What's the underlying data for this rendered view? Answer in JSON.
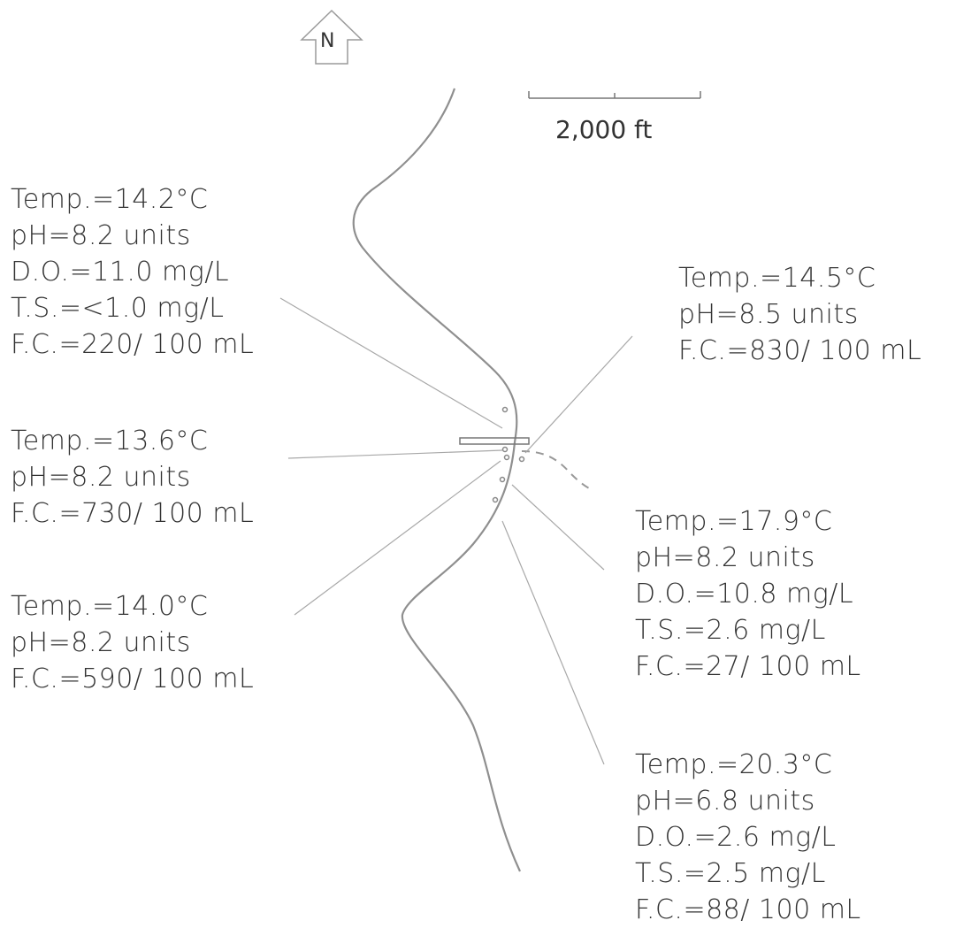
{
  "north_arrow": {
    "label": "N",
    "icon": "north-arrow-icon"
  },
  "scale_bar": {
    "label": "2,000 ft"
  },
  "colors": {
    "stroke": "#9a9a9a",
    "text": "#333333"
  },
  "stations": [
    {
      "id": "nw",
      "lines": [
        "Temp.=14.2°C",
        "pH=8.2 units",
        "D.O.=11.0 mg/L",
        "T.S.=<1.0 mg/L",
        "F.C.=220/ 100 mL"
      ]
    },
    {
      "id": "w",
      "lines": [
        "Temp.=13.6°C",
        "pH=8.2 units",
        "F.C.=730/ 100 mL"
      ]
    },
    {
      "id": "sw",
      "lines": [
        "Temp.=14.0°C",
        "pH=8.2 units",
        "F.C.=590/ 100 mL"
      ]
    },
    {
      "id": "ne",
      "lines": [
        "Temp.=14.5°C",
        "pH=8.5 units",
        "F.C.=830/ 100 mL"
      ]
    },
    {
      "id": "e",
      "lines": [
        "Temp.=17.9°C",
        "pH=8.2 units",
        "D.O.=10.8 mg/L",
        "T.S.=2.6 mg/L",
        "F.C.=27/ 100 mL"
      ]
    },
    {
      "id": "se",
      "lines": [
        "Temp.=20.3°C",
        "pH=6.8 units",
        "D.O.=2.6 mg/L",
        "T.S.=2.5 mg/L",
        "F.C.=88/ 100 mL"
      ]
    }
  ]
}
